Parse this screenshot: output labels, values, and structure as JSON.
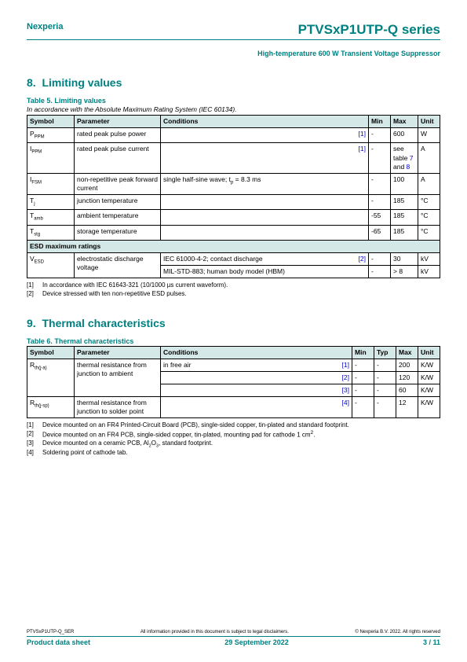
{
  "header": {
    "brand": "Nexperia",
    "product": "PTVSxP1UTP-Q series",
    "subtitle": "High-temperature 600 W Transient Voltage Suppressor"
  },
  "section1": {
    "num": "8.",
    "title": "Limiting values",
    "tableCaption": "Table 5. Limiting values",
    "tableSubcaption": "In accordance with the Absolute Maximum Rating System (IEC 60134).",
    "cols": {
      "symbol": "Symbol",
      "parameter": "Parameter",
      "conditions": "Conditions",
      "min": "Min",
      "max": "Max",
      "unit": "Unit"
    },
    "rows": [
      {
        "symbol": "P_PPM",
        "parameter": "rated peak pulse power",
        "conditions": "",
        "ref": "[1]",
        "min": "-",
        "max": "600",
        "unit": "W"
      },
      {
        "symbol": "I_PPM",
        "parameter": "rated peak pulse current",
        "conditions": "",
        "ref": "[1]",
        "min": "-",
        "maxHtml": "see table <span class='link'>7</span> and <span class='link'>8</span>",
        "unit": "A"
      },
      {
        "symbol": "I_FSM",
        "parameter": "non-repetitive peak forward current",
        "conditionsHtml": "single half-sine wave; t<sub>p</sub> = 8.3 ms",
        "ref": "",
        "min": "-",
        "max": "100",
        "unit": "A"
      },
      {
        "symbol": "T_j",
        "parameter": "junction temperature",
        "conditions": "",
        "ref": "",
        "min": "-",
        "max": "185",
        "unit": "°C"
      },
      {
        "symbol": "T_amb",
        "parameter": "ambient temperature",
        "conditions": "",
        "ref": "",
        "min": "-55",
        "max": "185",
        "unit": "°C"
      },
      {
        "symbol": "T_stg",
        "parameter": "storage temperature",
        "conditions": "",
        "ref": "",
        "min": "-65",
        "max": "185",
        "unit": "°C"
      }
    ],
    "esdHeading": "ESD maximum ratings",
    "esdRows": [
      {
        "symbol": "V_ESD",
        "parameter": "electrostatic discharge voltage",
        "conditions": "IEC 61000-4-2; contact discharge",
        "ref": "[2]",
        "min": "-",
        "max": "30",
        "unit": "kV"
      },
      {
        "conditions": "MIL-STD-883; human body model (HBM)",
        "ref": "",
        "min": "-",
        "max": "> 8",
        "unit": "kV"
      }
    ],
    "footnotes": [
      {
        "n": "[1]",
        "t": "In accordance with IEC 61643-321 (10/1000 µs current waveform)."
      },
      {
        "n": "[2]",
        "t": "Device stressed with ten non-repetitive ESD pulses."
      }
    ]
  },
  "section2": {
    "num": "9.",
    "title": "Thermal characteristics",
    "tableCaption": "Table 6. Thermal characteristics",
    "cols": {
      "symbol": "Symbol",
      "parameter": "Parameter",
      "conditions": "Conditions",
      "min": "Min",
      "typ": "Typ",
      "max": "Max",
      "unit": "Unit"
    },
    "rows": [
      {
        "symbol": "R_th(j-a)",
        "parameter": "thermal resistance from junction to ambient",
        "conditions": "in free air",
        "ref": "[1]",
        "min": "-",
        "typ": "-",
        "max": "200",
        "unit": "K/W"
      },
      {
        "ref": "[2]",
        "min": "-",
        "typ": "-",
        "max": "120",
        "unit": "K/W"
      },
      {
        "ref": "[3]",
        "min": "-",
        "typ": "-",
        "max": "60",
        "unit": "K/W"
      },
      {
        "symbol": "R_th(j-sp)",
        "parameter": "thermal resistance from junction to solder point",
        "conditions": "",
        "ref": "[4]",
        "min": "-",
        "typ": "-",
        "max": "12",
        "unit": "K/W"
      }
    ],
    "footnotes": [
      {
        "n": "[1]",
        "t": "Device mounted on an FR4 Printed-Circuit Board (PCB), single-sided copper, tin-plated and standard footprint."
      },
      {
        "n": "[2]",
        "tHtml": "Device mounted on an FR4 PCB, single-sided copper, tin-plated, mounting pad for cathode 1 cm<sup>2</sup>."
      },
      {
        "n": "[3]",
        "tHtml": "Device mounted on a ceramic PCB, Al<sub>2</sub>O<sub>3</sub>, standard footprint."
      },
      {
        "n": "[4]",
        "t": "Soldering point of cathode tab."
      }
    ]
  },
  "footer": {
    "docId": "PTVSxP1UTP-Q_SER",
    "disclaimer": "All information provided in this document is subject to legal disclaimers.",
    "copyright": "© Nexperia B.V. 2022. All rights reserved",
    "docType": "Product data sheet",
    "date": "29 September 2022",
    "page": "3 / 11"
  }
}
